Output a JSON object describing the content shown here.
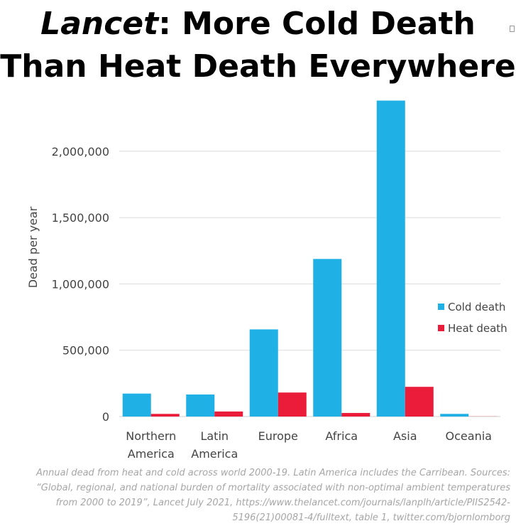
{
  "title": {
    "line1_italic": "Lancet",
    "line1_rest": ": More Cold Death",
    "line2": "Than Heat Death Everywhere"
  },
  "caption_lines": [
    "Annual dead from heat and cold across world 2000-19. Latin America includes the Carribean. Sources:",
    "“Global, regional, and national burden of mortality associated with non-optimal ambient temperatures",
    "from 2000 to 2019”, Lancet July 2021, https://www.thelancet.com/journals/lanplh/article/PIIS2542-",
    "5196(21)00081-4/fulltext, table 1, twitter.com/bjornlomborg"
  ],
  "chart_data": {
    "type": "bar",
    "title": "Lancet: More Cold Death Than Heat Death Everywhere",
    "xlabel": "",
    "ylabel": "Dead per year",
    "categories": [
      [
        "Northern",
        "America"
      ],
      [
        "Latin",
        "America"
      ],
      [
        "Europe"
      ],
      [
        "Africa"
      ],
      [
        "Asia"
      ],
      [
        "Oceania"
      ]
    ],
    "series": [
      {
        "name": "Cold death",
        "color": "#1fb0e6",
        "values": [
          173000,
          166000,
          657000,
          1188000,
          2382000,
          20000
        ]
      },
      {
        "name": "Heat death",
        "color": "#ea1c39",
        "values": [
          20000,
          38000,
          181000,
          27000,
          224000,
          1000
        ]
      }
    ],
    "yticks": [
      0,
      500000,
      1000000,
      1500000,
      2000000
    ],
    "ytick_labels": [
      "0",
      "500,000",
      "1,000,000",
      "1,500,000",
      "2,000,000"
    ],
    "ylim": [
      0,
      2400000
    ],
    "grid": true,
    "legend_position": "right"
  }
}
